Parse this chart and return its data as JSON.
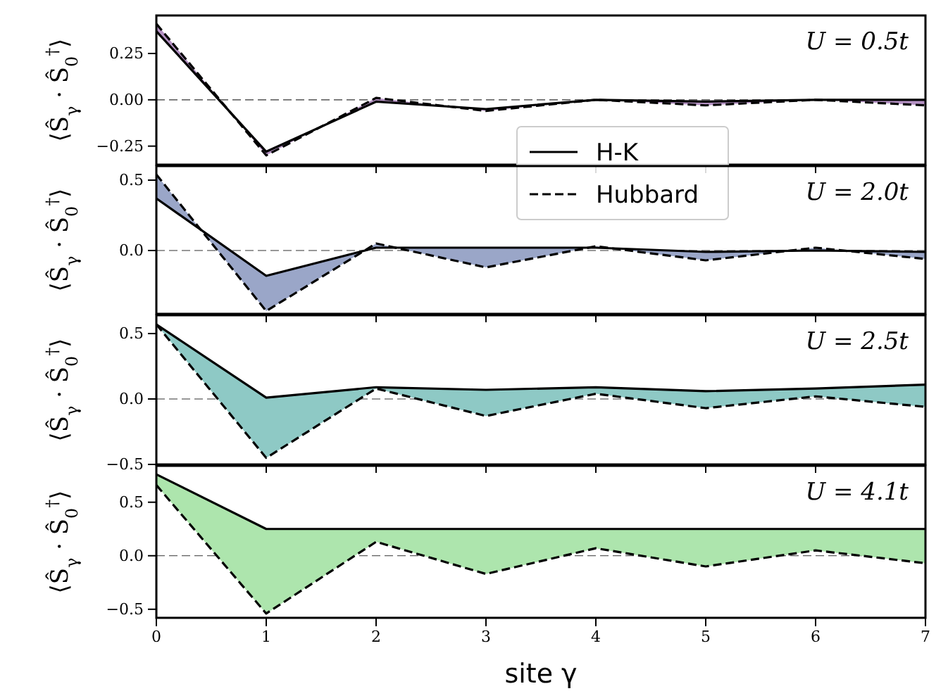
{
  "chart_data": [
    {
      "type": "line",
      "ylabel": "⟨Ŝ$_{γ}$ · Ŝ$_{0}$$^{†}$⟩",
      "annotations": [
        "U = 0.5t"
      ],
      "x": [
        0,
        1,
        2,
        3,
        4,
        5,
        6,
        7
      ],
      "xlim": [
        0,
        7
      ],
      "xticks": [
        0,
        1,
        2,
        3,
        4,
        5,
        6,
        7
      ],
      "ylim": [
        -0.35,
        0.455
      ],
      "yticks": [
        {
          "value": 0.25,
          "label": "0.25"
        },
        {
          "value": 0,
          "label": "0.00"
        },
        {
          "value": -0.25,
          "label": "−0.25"
        }
      ],
      "tick_labels": "y",
      "legend": "bottom",
      "ref_lines": [
        {
          "axis": "y",
          "value": 0,
          "line_style": "dashed"
        }
      ],
      "series": [
        {
          "name": "H-K",
          "color": "#000000",
          "line_style": "solid",
          "values": [
            0.37,
            -0.28,
            -0.01,
            -0.05,
            0.0,
            -0.01,
            0.0,
            0.0
          ]
        },
        {
          "name": "Hubbard",
          "color": "#000000",
          "line_style": "dashed",
          "values": [
            0.41,
            -0.3,
            0.01,
            -0.06,
            0.0,
            -0.03,
            0.0,
            -0.03
          ],
          "lower": [
            0.37,
            -0.28,
            -0.01,
            -0.05,
            0.0,
            -0.01,
            0.0,
            0.0
          ],
          "upper": [
            0.41,
            -0.3,
            0.01,
            -0.06,
            0.0,
            -0.03,
            0.0,
            -0.03
          ]
        }
      ],
      "colors": [
        "#b592c4"
      ]
    },
    {
      "type": "line",
      "ylabel": "⟨Ŝ$_{γ}$ · Ŝ$_{0}$$^{†}$⟩",
      "annotations": [
        "U = 2.0t"
      ],
      "x": [
        0,
        1,
        2,
        3,
        4,
        5,
        6,
        7
      ],
      "xlim": [
        0,
        7
      ],
      "xticks": [
        0,
        1,
        2,
        3,
        4,
        5,
        6,
        7
      ],
      "ylim": [
        -0.45,
        0.6
      ],
      "yticks": [
        {
          "value": 0.5,
          "label": "0.5"
        },
        {
          "value": 0,
          "label": "0.0"
        }
      ],
      "tick_labels": "y",
      "ref_lines": [
        {
          "axis": "y",
          "value": 0,
          "line_style": "dashed"
        }
      ],
      "series": [
        {
          "color": "#000000",
          "line_style": "solid",
          "values": [
            0.37,
            -0.18,
            0.02,
            0.02,
            0.02,
            -0.01,
            0.0,
            -0.01
          ]
        },
        {
          "color": "#000000",
          "line_style": "dashed",
          "values": [
            0.54,
            -0.43,
            0.05,
            -0.12,
            0.03,
            -0.07,
            0.02,
            -0.06
          ],
          "lower": [
            0.37,
            -0.18,
            0.02,
            0.02,
            0.02,
            -0.01,
            0.0,
            -0.01
          ],
          "upper": [
            0.54,
            -0.43,
            0.05,
            -0.12,
            0.03,
            -0.07,
            0.02,
            -0.06
          ]
        }
      ],
      "colors": [
        "#9aa6c8"
      ]
    },
    {
      "type": "line",
      "ylabel": "⟨Ŝ$_{γ}$ · Ŝ$_{0}$$^{†}$⟩",
      "annotations": [
        "U = 2.5t"
      ],
      "x": [
        0,
        1,
        2,
        3,
        4,
        5,
        6,
        7
      ],
      "xlim": [
        0,
        7
      ],
      "xticks": [
        0,
        1,
        2,
        3,
        4,
        5,
        6,
        7
      ],
      "ylim": [
        -0.5,
        0.64
      ],
      "yticks": [
        {
          "value": 0.5,
          "label": "0.5"
        },
        {
          "value": 0,
          "label": "0.0"
        },
        {
          "value": -0.5,
          "label": "−0.5"
        }
      ],
      "tick_labels": "y",
      "ref_lines": [
        {
          "axis": "y",
          "value": 0,
          "line_style": "dashed"
        }
      ],
      "series": [
        {
          "color": "#000000",
          "line_style": "solid",
          "values": [
            0.57,
            0.01,
            0.09,
            0.07,
            0.09,
            0.06,
            0.08,
            0.11
          ]
        },
        {
          "color": "#000000",
          "line_style": "dashed",
          "values": [
            0.57,
            -0.45,
            0.08,
            -0.13,
            0.04,
            -0.07,
            0.02,
            -0.06
          ],
          "lower": [
            0.57,
            0.01,
            0.09,
            0.07,
            0.09,
            0.06,
            0.08,
            0.11
          ],
          "upper": [
            0.57,
            -0.45,
            0.08,
            -0.13,
            0.04,
            -0.07,
            0.02,
            -0.06
          ]
        }
      ],
      "colors": [
        "#8ec9c5"
      ]
    },
    {
      "type": "line",
      "ylabel": "⟨Ŝ$_{γ}$ · Ŝ$_{0}$$^{†}$⟩",
      "xlabel": "site γ",
      "annotations": [
        "U = 4.1t"
      ],
      "x": [
        0,
        1,
        2,
        3,
        4,
        5,
        6,
        7
      ],
      "xlim": [
        0,
        7
      ],
      "xticks": [
        0,
        1,
        2,
        3,
        4,
        5,
        6,
        7
      ],
      "ylim": [
        -0.58,
        0.84
      ],
      "yticks": [
        {
          "value": 0.5,
          "label": "0.5"
        },
        {
          "value": 0,
          "label": "0.0"
        },
        {
          "value": -0.5,
          "label": "−0.5"
        }
      ],
      "ref_lines": [
        {
          "axis": "y",
          "value": 0,
          "line_style": "dashed"
        }
      ],
      "series": [
        {
          "color": "#000000",
          "line_style": "solid",
          "values": [
            0.76,
            0.25,
            0.25,
            0.25,
            0.25,
            0.25,
            0.25,
            0.25
          ]
        },
        {
          "color": "#000000",
          "line_style": "dashed",
          "values": [
            0.66,
            -0.54,
            0.13,
            -0.17,
            0.07,
            -0.1,
            0.05,
            -0.07
          ],
          "lower": [
            0.76,
            0.25,
            0.25,
            0.25,
            0.25,
            0.25,
            0.25,
            0.25
          ],
          "upper": [
            0.66,
            -0.54,
            0.13,
            -0.17,
            0.07,
            -0.1,
            0.05,
            -0.07
          ]
        }
      ],
      "colors": [
        "#ade5ad"
      ]
    }
  ]
}
